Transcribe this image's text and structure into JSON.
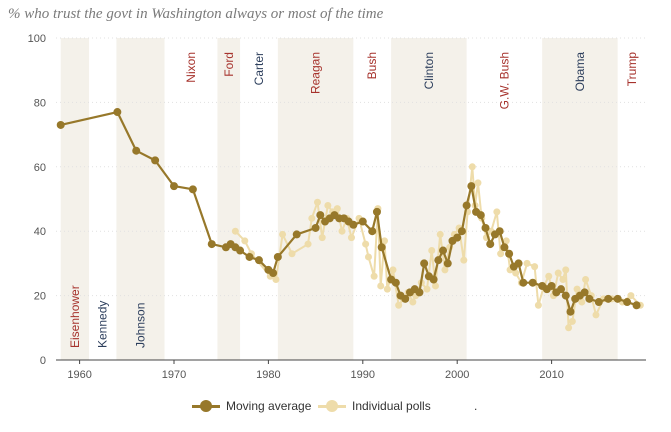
{
  "title": "% who trust the govt in Washington always or most of the time",
  "colors": {
    "moving_average": "#97782a",
    "individual_polls": "#eedcaa",
    "band": "#f4f1ea",
    "republican_label": "#a6322c",
    "democrat_label": "#2c3e5c",
    "axis_text": "#555555",
    "grid": "#e1e1e1"
  },
  "legend": {
    "moving_average": "Moving average",
    "individual_polls": "Individual polls",
    "trailing_mark": "."
  },
  "chart_data": {
    "type": "line",
    "title": "% who trust the govt in Washington always or most of the time",
    "xlabel": "",
    "ylabel": "",
    "xlim": [
      1957.5,
      2020
    ],
    "ylim": [
      0,
      100
    ],
    "x_ticks": [
      1960,
      1970,
      1980,
      1990,
      2000,
      2010
    ],
    "y_ticks": [
      0,
      20,
      40,
      60,
      80,
      100
    ],
    "grid": true,
    "legend_position": "bottom-center",
    "presidencies": [
      {
        "name": "Eisenhower",
        "start": 1958,
        "end": 1961,
        "party": "R",
        "shaded": true,
        "label_position": "bottom"
      },
      {
        "name": "Kennedy",
        "start": 1961,
        "end": 1963.9,
        "party": "D",
        "shaded": false,
        "label_position": "bottom"
      },
      {
        "name": "Johnson",
        "start": 1963.9,
        "end": 1969,
        "party": "D",
        "shaded": true,
        "label_position": "bottom"
      },
      {
        "name": "Nixon",
        "start": 1969,
        "end": 1974.6,
        "party": "R",
        "shaded": false,
        "label_position": "top"
      },
      {
        "name": "Ford",
        "start": 1974.6,
        "end": 1977,
        "party": "R",
        "shaded": true,
        "label_position": "top"
      },
      {
        "name": "Carter",
        "start": 1977,
        "end": 1981,
        "party": "D",
        "shaded": false,
        "label_position": "top"
      },
      {
        "name": "Reagan",
        "start": 1981,
        "end": 1989,
        "party": "R",
        "shaded": true,
        "label_position": "top"
      },
      {
        "name": "Bush",
        "start": 1989,
        "end": 1993,
        "party": "R",
        "shaded": false,
        "label_position": "top"
      },
      {
        "name": "Clinton",
        "start": 1993,
        "end": 2001,
        "party": "D",
        "shaded": true,
        "label_position": "top"
      },
      {
        "name": "G.W. Bush",
        "start": 2001,
        "end": 2009,
        "party": "R",
        "shaded": false,
        "label_position": "top"
      },
      {
        "name": "Obama",
        "start": 2009,
        "end": 2017,
        "party": "D",
        "shaded": true,
        "label_position": "top"
      },
      {
        "name": "Trump",
        "start": 2017,
        "end": 2020,
        "party": "R",
        "shaded": false,
        "label_position": "top"
      }
    ],
    "series": [
      {
        "name": "Moving average",
        "x": [
          1958,
          1964,
          1966,
          1968,
          1970,
          1972,
          1974,
          1975.5,
          1976,
          1976.5,
          1977,
          1978,
          1979,
          1980,
          1980.5,
          1981,
          1983,
          1985,
          1985.5,
          1986,
          1986.5,
          1987,
          1987.5,
          1988,
          1988.5,
          1989,
          1990,
          1991,
          1991.5,
          1992,
          1993,
          1993.5,
          1994,
          1994.5,
          1995,
          1995.5,
          1996,
          1996.5,
          1997,
          1997.5,
          1998,
          1998.5,
          1999,
          1999.5,
          2000,
          2000.5,
          2001,
          2001.5,
          2002,
          2002.5,
          2003,
          2003.5,
          2004,
          2004.5,
          2005,
          2005.5,
          2006,
          2006.5,
          2007,
          2008,
          2009,
          2009.5,
          2010,
          2010.5,
          2011,
          2011.5,
          2012,
          2012.5,
          2013,
          2013.5,
          2014,
          2015,
          2016,
          2017,
          2018,
          2019
        ],
        "values": [
          73,
          77,
          65,
          62,
          54,
          53,
          36,
          35,
          36,
          35,
          34,
          32,
          31,
          28,
          27,
          32,
          39,
          41,
          45,
          43,
          44,
          45,
          44,
          44,
          43,
          42,
          43,
          40,
          46,
          35,
          25,
          24,
          20,
          19,
          21,
          22,
          21,
          30,
          26,
          25,
          31,
          34,
          30,
          37,
          38,
          40,
          48,
          54,
          46,
          45,
          41,
          36,
          39,
          40,
          35,
          33,
          29,
          30,
          24,
          24,
          23,
          22,
          23,
          21,
          22,
          20,
          15,
          19,
          20,
          21,
          19,
          18,
          19,
          19,
          18,
          17
        ]
      },
      {
        "name": "Individual polls",
        "x": [
          1976.5,
          1977.5,
          1978.2,
          1980.2,
          1980.8,
          1981.5,
          1982.5,
          1984.2,
          1984.6,
          1985.2,
          1985.7,
          1986.3,
          1986.8,
          1987.3,
          1987.8,
          1988.3,
          1988.8,
          1989.6,
          1990.3,
          1990.6,
          1991.2,
          1991.6,
          1991.9,
          1992.3,
          1992.6,
          1993.2,
          1993.8,
          1994.3,
          1994.8,
          1995.3,
          1995.6,
          1996.2,
          1996.8,
          1997.3,
          1997.7,
          1998.2,
          1998.7,
          1999.2,
          1999.7,
          2000.2,
          2000.7,
          2001.1,
          2001.6,
          2001.9,
          2002.2,
          2002.6,
          2003.1,
          2003.6,
          2004.2,
          2004.6,
          2005.2,
          2005.6,
          2006.2,
          2006.8,
          2007.4,
          2008.2,
          2008.6,
          2009.2,
          2009.7,
          2010.2,
          2010.7,
          2011.2,
          2011.5,
          2011.8,
          2012.2,
          2012.7,
          2013.2,
          2013.6,
          2014.2,
          2014.7,
          2015.5,
          2016.4,
          2017.5,
          2018.4,
          2019.4
        ],
        "values": [
          40,
          37,
          33,
          26,
          25,
          39,
          33,
          36,
          44,
          49,
          38,
          48,
          46,
          47,
          40,
          44,
          38,
          44,
          36,
          32,
          26,
          47,
          23,
          37,
          22,
          28,
          17,
          19,
          21,
          18,
          20,
          24,
          22,
          34,
          23,
          39,
          28,
          35,
          39,
          41,
          31,
          46,
          60,
          48,
          55,
          44,
          38,
          40,
          46,
          33,
          37,
          28,
          27,
          24,
          30,
          29,
          17,
          23,
          26,
          20,
          27,
          25,
          28,
          10,
          12,
          22,
          18,
          25,
          20,
          14,
          19,
          19,
          18,
          20,
          17
        ]
      }
    ]
  }
}
